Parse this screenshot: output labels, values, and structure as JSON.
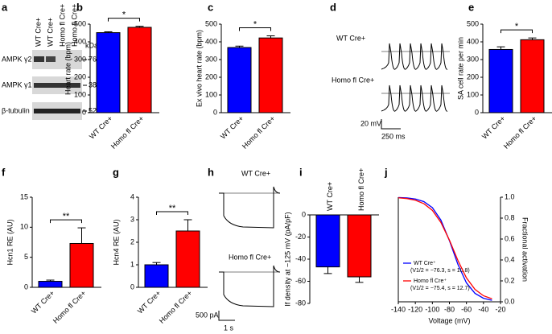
{
  "panel_labels": [
    "a",
    "b",
    "c",
    "d",
    "e",
    "f",
    "g",
    "h",
    "i",
    "j"
  ],
  "blot": {
    "lanes": [
      "WT Cre+",
      "WT Cre+",
      "Homo fl Cre+",
      "Homo fl Cre+"
    ],
    "unit": "kDa",
    "rows": [
      {
        "label": "AMPK γ2",
        "marker": "76"
      },
      {
        "label": "AMPK γ1",
        "marker": "38"
      },
      {
        "label": "β-tubulin",
        "marker": "52"
      }
    ]
  },
  "traces_d": {
    "labels": [
      "WT Cre+",
      "Homo fl Cre+"
    ],
    "scale_y": "20 mV",
    "scale_x": "250 ms"
  },
  "traces_h": {
    "labels": [
      "WT Cre+",
      "Homo fl Cre+"
    ],
    "scale_y": "500 pA",
    "scale_x": "1 s"
  },
  "chart_data": [
    {
      "type": "bar",
      "ylabel": "Heart rate (bpm)",
      "categories": [
        "WT Cre+",
        "Homo fl Cre+"
      ],
      "values": [
        452,
        482
      ],
      "errors": [
        5,
        6
      ],
      "colors": [
        "#0000ff",
        "#ff0000"
      ],
      "ylim": [
        0,
        500
      ],
      "yticks": [
        0,
        100,
        200,
        300,
        400,
        500
      ],
      "annotation": "*"
    },
    {
      "type": "bar",
      "ylabel": "Ex vivo heart rate (bpm)",
      "categories": [
        "WT Cre+",
        "Homo fl Cre+"
      ],
      "values": [
        368,
        422
      ],
      "errors": [
        8,
        12
      ],
      "colors": [
        "#0000ff",
        "#ff0000"
      ],
      "ylim": [
        0,
        500
      ],
      "yticks": [
        0,
        100,
        200,
        300,
        400,
        500
      ],
      "annotation": "*"
    },
    {
      "type": "bar",
      "ylabel": "SA cell rate per min",
      "categories": [
        "WT Cre+",
        "Homo fl Cre+"
      ],
      "values": [
        357,
        412
      ],
      "errors": [
        15,
        10
      ],
      "colors": [
        "#0000ff",
        "#ff0000"
      ],
      "ylim": [
        0,
        500
      ],
      "yticks": [
        0,
        100,
        200,
        300,
        400,
        500
      ],
      "annotation": "*"
    },
    {
      "type": "bar",
      "ylabel": "Hcn1 RE (AU)",
      "categories": [
        "WT Cre+",
        "Homo fl Cre+"
      ],
      "values": [
        1.0,
        7.3
      ],
      "errors": [
        0.2,
        2.6
      ],
      "colors": [
        "#0000ff",
        "#ff0000"
      ],
      "ylim": [
        0,
        15
      ],
      "yticks": [
        0,
        5,
        10,
        15
      ],
      "annotation": "**"
    },
    {
      "type": "bar",
      "ylabel": "Hcn4 RE (AU)",
      "categories": [
        "WT Cre+",
        "Homo fl Cre+"
      ],
      "values": [
        1.0,
        2.5
      ],
      "errors": [
        0.1,
        0.5
      ],
      "colors": [
        "#0000ff",
        "#ff0000"
      ],
      "ylim": [
        0,
        4
      ],
      "yticks": [
        0,
        1,
        2,
        3,
        4
      ],
      "annotation": "**"
    },
    {
      "type": "bar",
      "ylabel": "If density at −125 mV (pA/pF)",
      "categories": [
        "WT Cre+",
        "Homo fl Cre+"
      ],
      "values": [
        -47,
        -56
      ],
      "errors": [
        6,
        5
      ],
      "colors": [
        "#0000ff",
        "#ff0000"
      ],
      "ylim": [
        -80,
        0
      ],
      "yticks": [
        0,
        -20,
        -40,
        -60,
        -80
      ]
    },
    {
      "type": "line",
      "xlabel": "Voltage (mV)",
      "ylabel": "Fractional activation",
      "x": [
        -140,
        -130,
        -120,
        -110,
        -100,
        -90,
        -80,
        -70,
        -60,
        -50,
        -40,
        -30
      ],
      "series": [
        {
          "name": "WT Cre⁺",
          "note": "(V1/2 = −76.3, s = 10.8)",
          "color": "#0000ff",
          "values": [
            0.997,
            0.993,
            0.983,
            0.958,
            0.9,
            0.781,
            0.585,
            0.358,
            0.181,
            0.081,
            0.034,
            0.014
          ]
        },
        {
          "name": "Homo fl Cre⁺",
          "note": "(V1/2 = −75.4, s = 12.7)",
          "color": "#ff0000",
          "values": [
            0.994,
            0.987,
            0.971,
            0.938,
            0.874,
            0.759,
            0.59,
            0.395,
            0.229,
            0.119,
            0.058,
            0.029
          ]
        }
      ],
      "xlim": [
        -140,
        -20
      ],
      "xticks": [
        -140,
        -120,
        -100,
        -80,
        -60,
        -40,
        -20
      ],
      "y2lim": [
        0,
        1
      ],
      "y2ticks": [
        {
          "value": 0,
          "label": "0.0"
        },
        0.2,
        0.4,
        0.6,
        0.8,
        {
          "value": 1,
          "label": "1.0"
        }
      ]
    }
  ]
}
